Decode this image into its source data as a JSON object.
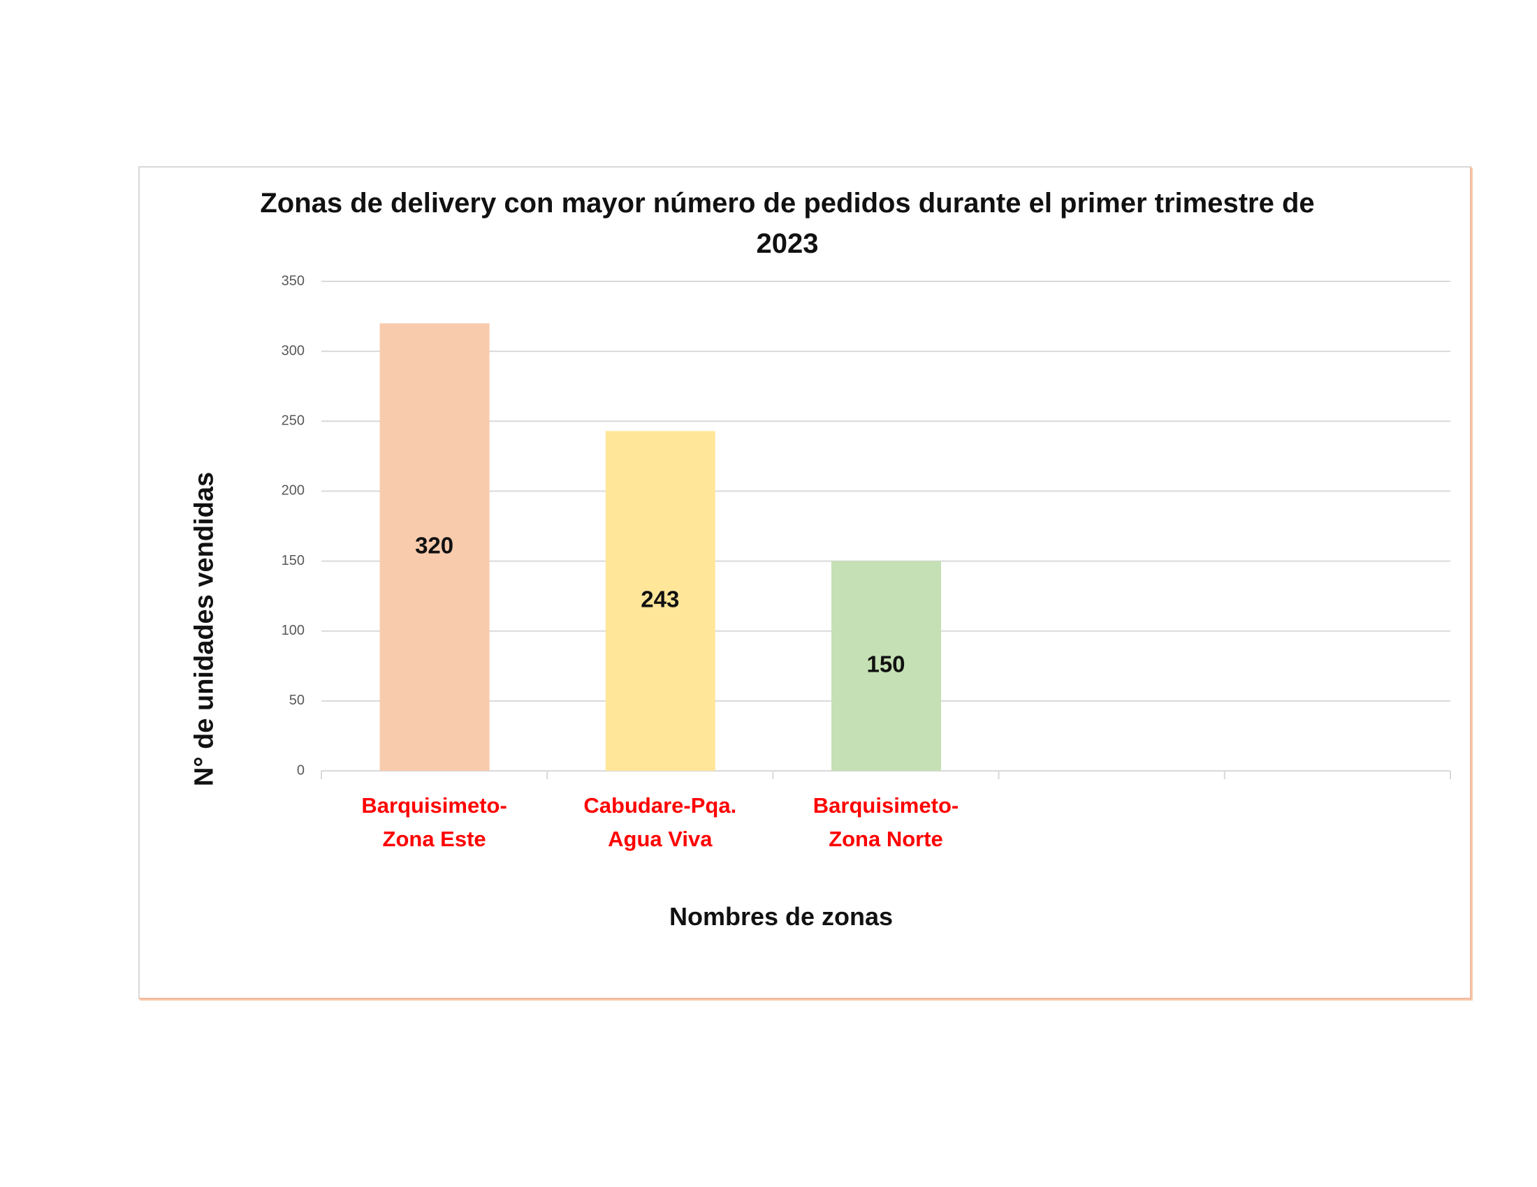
{
  "chart_data": {
    "type": "bar",
    "title": "Zonas de delivery con mayor número de pedidos durante el primer trimestre de 2023",
    "x_label": "Nombres de zonas",
    "y_label": "N° de unidades vendidas",
    "categories": [
      "Barquisimeto-Zona Este",
      "Cabudare-Pqa. Agua Viva",
      "Barquisimeto-Zona Norte",
      null,
      null
    ],
    "values": [
      320,
      243,
      150,
      null,
      null
    ],
    "colors": [
      "#f8cbad",
      "#ffe699",
      "#c5e0b4",
      null,
      null
    ],
    "ylim": [
      0,
      350
    ],
    "yticks": [
      0,
      50,
      100,
      150,
      200,
      250,
      300,
      350
    ],
    "grid": true
  }
}
